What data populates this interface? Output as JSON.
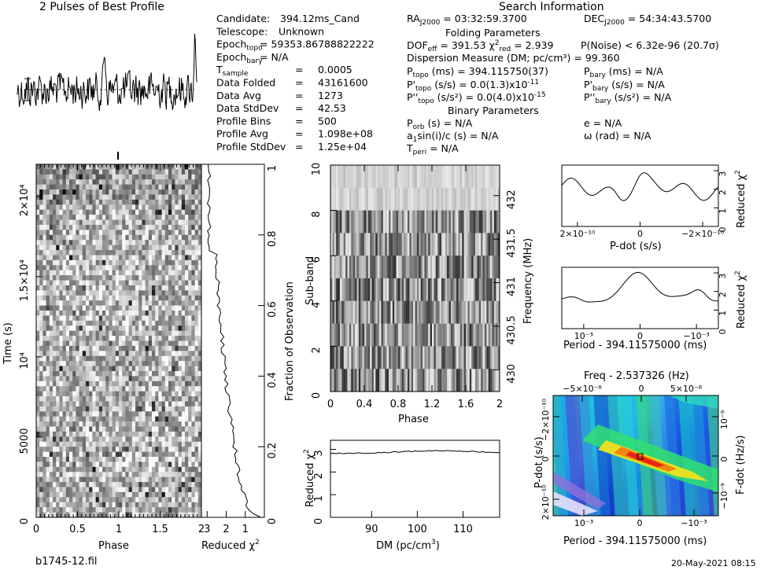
{
  "header": {
    "title": "2 Pulses of Best Profile",
    "search_info": "Search Information",
    "footer_file": "b1745-12.fil",
    "footer_date": "20-May-2021 08:15"
  },
  "info_left": [
    [
      "Candidate:",
      "394.12ms_Cand"
    ],
    [
      "Telescope:",
      "Unknown"
    ],
    [
      "Epoch_topo",
      "= 59353.86788822222"
    ],
    [
      "Epoch_bary",
      "= N/A"
    ],
    [
      "T_sample",
      "0.0005"
    ],
    [
      "Data Folded",
      "43161600"
    ],
    [
      "Data Avg",
      "1273"
    ],
    [
      "Data StdDev",
      "42.53"
    ],
    [
      "Profile Bins",
      "500"
    ],
    [
      "Profile Avg",
      "1.098e+08"
    ],
    [
      "Profile StdDev",
      "1.25e+04"
    ]
  ],
  "info_mid": {
    "ra": "RA_J2000 = 03:32:59.3700",
    "dec": "DEC_J2000 = 54:34:43.5700",
    "folding_title": "Folding Parameters",
    "dof": "DOF_eff = 391.53",
    "chi2red": "χ²_red = 2.939",
    "pnoise": "P(Noise) < 6.32e-96   (20.7σ)",
    "dm": "Dispersion Measure (DM; pc/cm³) = 99.360",
    "ptopo": "P_topo (ms) = 394.115750(37)",
    "pbary": "P_bary (ms) = N/A",
    "pdtopo": "P'_topo (s/s) = 0.0(1.3)x10⁻¹¹",
    "pdbary": "P'_bary (s/s) = N/A",
    "pddtopo": "P''_topo (s/s²) = 0.0(4.0)x10⁻¹⁵",
    "pddbary": "P''_bary (s/s²) = N/A",
    "binary_title": "Binary Parameters",
    "porb": "P_orb (s) = N/A",
    "e": "e = N/A",
    "a1": "a₁sin(i)/c (s) = N/A",
    "omega": "ω (rad) = N/A",
    "tperi": "T_peri = N/A"
  },
  "axes": {
    "time_label": "Time (s)",
    "phase_label": "Phase",
    "redchi_label": "Reduced χ²",
    "frac_label": "Fraction of Observation",
    "subband_label": "Sub-band",
    "freq_label": "Frequency (MHz)",
    "dm_label": "DM (pc/cm³)",
    "pdot_label": "P-dot (s/s)",
    "period_label": "Period - 394.11575000 (ms)",
    "freq_top_label": "Freq - 2.537326 (Hz)",
    "fdot_label": "F-dot (Hz/s)"
  },
  "chart_data": [
    {
      "type": "line",
      "name": "profile",
      "x_range": [
        0,
        2
      ],
      "note": "2 pulses of best profile"
    },
    {
      "type": "heatmap",
      "name": "time-phase",
      "x": [
        0,
        0.5,
        1,
        1.5,
        2
      ],
      "y_ticks": [
        0,
        5000,
        10000,
        15000,
        20000
      ],
      "xlabel": "Phase",
      "ylabel": "Time (s)"
    },
    {
      "type": "line",
      "name": "reduced-chi2-vs-time",
      "x_ticks": [
        3,
        2,
        1
      ],
      "xlabel": "Reduced χ²",
      "y2_ticks": [
        0,
        0.2,
        0.4,
        0.6,
        0.8,
        1
      ],
      "y2label": "Fraction of Observation"
    },
    {
      "type": "heatmap",
      "name": "subband-phase",
      "x_ticks": [
        0,
        0.4,
        0.8,
        1.2,
        1.6,
        2
      ],
      "y_ticks": [
        0,
        2,
        4,
        6,
        8,
        10
      ],
      "y2_ticks": [
        430,
        430.5,
        431,
        431.5,
        432
      ],
      "xlabel": "Phase",
      "ylabel": "Sub-band",
      "y2label": "Frequency (MHz)"
    },
    {
      "type": "line",
      "name": "dm-chi2",
      "x_ticks": [
        90,
        100,
        110
      ],
      "y_ticks": [
        0,
        1,
        2,
        3
      ],
      "xlabel": "DM (pc/cm³)",
      "ylabel": "Reduced χ²"
    },
    {
      "type": "line",
      "name": "pdot-chi2",
      "x_ticks": [
        "2×10⁻¹⁰",
        "0",
        "−2×10⁻¹⁰"
      ],
      "y_ticks": [
        0,
        1,
        2,
        3
      ],
      "xlabel": "P-dot (s/s)",
      "ylabel": "Reduced χ²"
    },
    {
      "type": "line",
      "name": "period-chi2",
      "x_ticks": [
        "10⁻³",
        "0",
        "−10⁻³"
      ],
      "y_ticks": [
        0,
        1,
        2,
        3
      ],
      "xlabel": "Period - 394.11575000 (ms)",
      "ylabel": "Reduced χ²"
    },
    {
      "type": "heatmap",
      "name": "p-pdot",
      "x_ticks": [
        "10⁻³",
        "0",
        "−10⁻³"
      ],
      "x2_ticks": [
        "−5×10⁻⁸",
        "0",
        "5×10⁻⁸"
      ],
      "y_ticks": [
        "2×10⁻¹⁰",
        "0",
        "−2×10⁻¹⁰"
      ],
      "y2_ticks": [
        "10⁻⁹",
        "0",
        "−10⁻⁹"
      ]
    }
  ]
}
